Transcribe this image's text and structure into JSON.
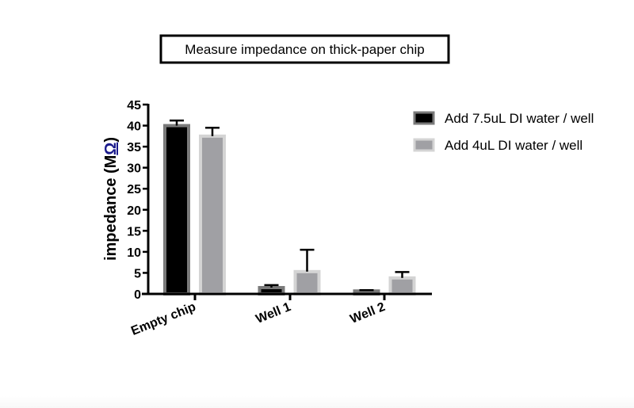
{
  "chart_data": {
    "type": "bar",
    "title": "Measure impedance on thick-paper chip",
    "xlabel": "",
    "ylabel": "impedance (MΩ)",
    "ylabel_prefix": "impedance (M",
    "ylabel_unit": "Ω",
    "ylabel_suffix": ")",
    "ylim": [
      0,
      45
    ],
    "yticks": [
      0,
      5,
      10,
      15,
      20,
      25,
      30,
      35,
      40,
      45
    ],
    "grid": false,
    "legend_position": "right",
    "categories": [
      "Empty chip",
      "Well 1",
      "Well 2"
    ],
    "series": [
      {
        "name": "Add 7.5uL DI water / well",
        "color": "#000000",
        "border": "#7a7a7a",
        "values": [
          40.0,
          1.5,
          0.7
        ],
        "error": [
          1.2,
          0.6,
          0.2
        ]
      },
      {
        "name": "Add 4uL DI water / well",
        "color": "#a0a0a4",
        "border": "#d4d4d4",
        "values": [
          37.5,
          5.3,
          3.8
        ],
        "error": [
          2.0,
          5.2,
          1.4
        ]
      }
    ]
  }
}
